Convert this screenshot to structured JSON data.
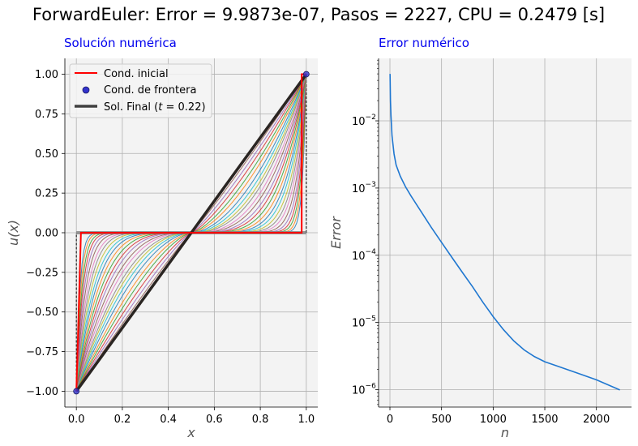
{
  "figure": {
    "title": "ForwardEuler: Error = 9.9873e-07, Pasos = 2227, CPU = 0.2479 [s]",
    "background": "#ffffff",
    "axes_background": "#f3f3f3",
    "grid_color": "#b0b0b0"
  },
  "chart_data": [
    {
      "type": "line",
      "title": "Solución numérica",
      "xlabel": "x",
      "ylabel": "u(x)",
      "xlim": [
        -0.05,
        1.05
      ],
      "ylim": [
        -1.1,
        1.1
      ],
      "xticks": [
        0.0,
        0.2,
        0.4,
        0.6,
        0.8,
        1.0
      ],
      "xtick_labels": [
        "0.0",
        "0.2",
        "0.4",
        "0.6",
        "0.8",
        "1.0"
      ],
      "yticks": [
        -1.0,
        -0.75,
        -0.5,
        -0.25,
        0.0,
        0.25,
        0.5,
        0.75,
        1.0
      ],
      "ytick_labels": [
        "−1.00",
        "−0.75",
        "−0.50",
        "−0.25",
        "0.00",
        "0.25",
        "0.50",
        "0.75",
        "1.00"
      ],
      "grid": true,
      "legend_position": "top-left",
      "legend": [
        {
          "label": "Cond. inicial",
          "style": "line",
          "color": "#ff0000"
        },
        {
          "label": "Cond. de frontera",
          "style": "marker",
          "color": "#3333cc"
        },
        {
          "label": "Sol. Final (t = 0.22)",
          "label_prefix": "Sol. Final (",
          "label_var": "t",
          "label_suffix": " = 0.22)",
          "style": "line",
          "color": "#404040"
        }
      ],
      "initial_condition": {
        "color": "#ff0000",
        "x": [
          0.0,
          0.02,
          0.02,
          0.98,
          0.98,
          1.0
        ],
        "y": [
          -1.0,
          0.0,
          0.0,
          0.0,
          1.0,
          1.0
        ]
      },
      "boundary_points": {
        "color": "#3333cc",
        "x": [
          0.0,
          1.0
        ],
        "y": [
          -1.0,
          1.0
        ]
      },
      "boundary_dashes": {
        "x": [
          0.0,
          1.0
        ],
        "y_from": [
          -1.0,
          0.0
        ],
        "y_to": [
          0.0,
          1.0
        ]
      },
      "intermediate_solutions": {
        "colors": [
          "#1f77b4",
          "#ff7f0e",
          "#2ca02c",
          "#d62728",
          "#9467bd",
          "#8c564b",
          "#e377c2",
          "#7f7f7f",
          "#bcbd22",
          "#17becf"
        ],
        "exponents": [
          32,
          26,
          21,
          17.5,
          14.5,
          12,
          10,
          8.6,
          7.4,
          6.4,
          5.6,
          4.9,
          4.3,
          3.8,
          3.4,
          3.0,
          2.7,
          2.4,
          2.2,
          2.0,
          1.8,
          1.6,
          1.45,
          1.3,
          1.18,
          1.08
        ]
      },
      "final_solution": {
        "color": "#2a2522",
        "x": [
          0.0,
          1.0
        ],
        "y": [
          -1.0,
          1.0
        ]
      }
    },
    {
      "type": "line",
      "title": "Error numérico",
      "xlabel": "n",
      "ylabel": "Error",
      "xlim": [
        -110,
        2340
      ],
      "log_y": true,
      "ylim": [
        5.5e-07,
        0.085
      ],
      "xticks": [
        0,
        500,
        1000,
        1500,
        2000
      ],
      "xtick_labels": [
        "0",
        "500",
        "1000",
        "1500",
        "2000"
      ],
      "yticks": [
        1e-06,
        1e-05,
        0.0001,
        0.001,
        0.01
      ],
      "ytick_labels": [
        [
          "10",
          "−6"
        ],
        [
          "10",
          "−5"
        ],
        [
          "10",
          "−4"
        ],
        [
          "10",
          "−3"
        ],
        [
          "10",
          "−2"
        ]
      ],
      "grid": true,
      "series": [
        {
          "color": "#1f77d0",
          "x": [
            1,
            5,
            10,
            20,
            40,
            60,
            100,
            150,
            200,
            300,
            400,
            500,
            600,
            700,
            800,
            900,
            1000,
            1100,
            1200,
            1300,
            1400,
            1500,
            1600,
            1800,
            2000,
            2200,
            2227
          ],
          "y": [
            0.05,
            0.02,
            0.012,
            0.006,
            0.0032,
            0.0022,
            0.0015,
            0.00105,
            0.00078,
            0.00045,
            0.00026,
            0.000155,
            9.3e-05,
            5.6e-05,
            3.4e-05,
            2e-05,
            1.22e-05,
            7.8e-06,
            5.3e-06,
            3.9e-06,
            3.1e-06,
            2.6e-06,
            2.3e-06,
            1.8e-06,
            1.4e-06,
            1.03e-06,
            9.9e-07
          ]
        }
      ]
    }
  ]
}
